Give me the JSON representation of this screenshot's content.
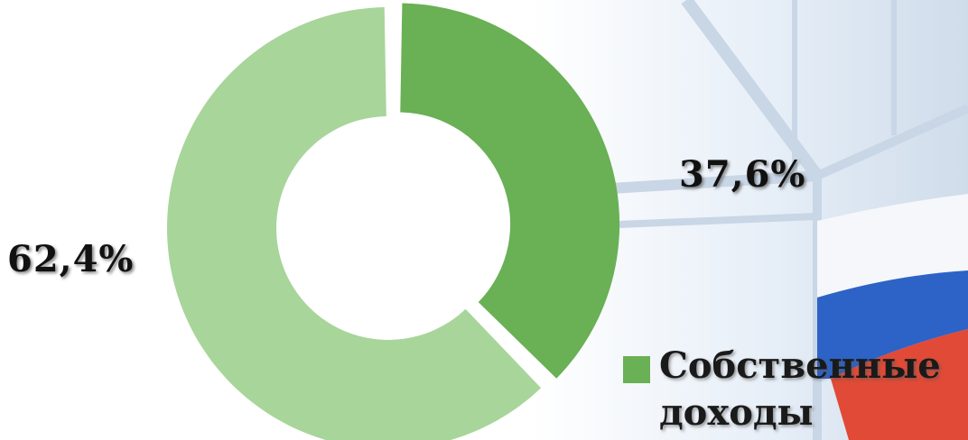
{
  "chart_data": {
    "type": "pie",
    "style": "donut",
    "slices": [
      {
        "label": "62,4%",
        "value": 62.4,
        "color": "#a8d59a"
      },
      {
        "label": "37,6%",
        "value": 37.6,
        "color": "#6ab055",
        "exploded": true
      }
    ],
    "legend": {
      "placement": "bottom-right",
      "entries": [
        {
          "name": "Собственные доходы",
          "color": "#6ab055"
        }
      ]
    }
  },
  "background": {
    "decoration": "light building facade with flag",
    "colors": [
      "#ffffff",
      "#cfe0f2",
      "#2a62c4",
      "#e24a35"
    ]
  }
}
